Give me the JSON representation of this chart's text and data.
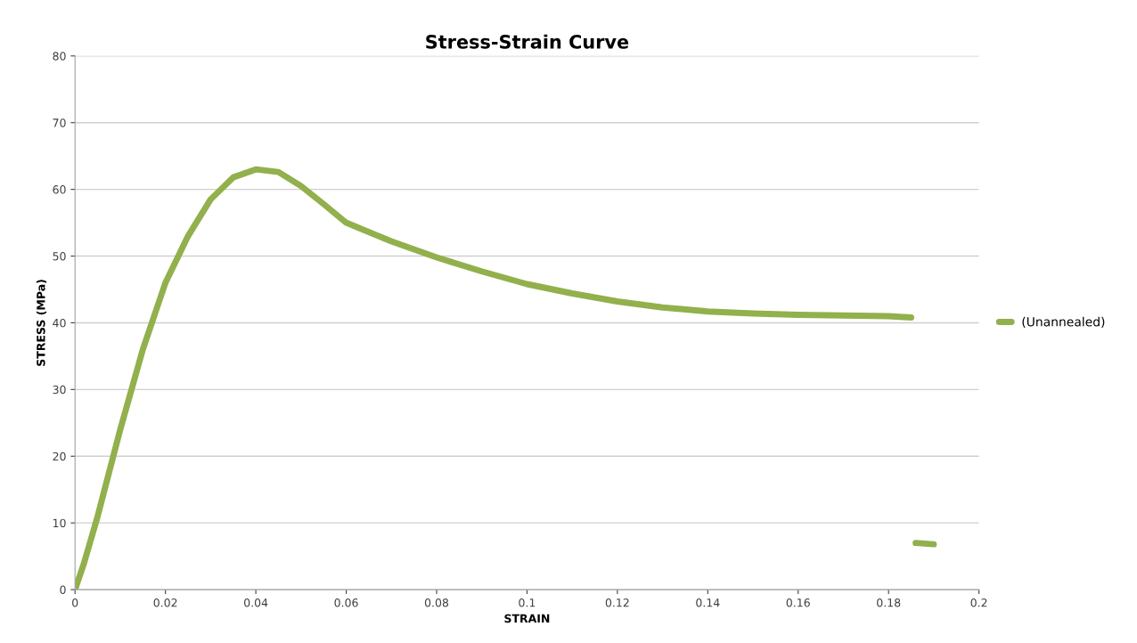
{
  "chart_data": {
    "type": "line",
    "title": "Stress-Strain Curve",
    "xlabel": "STRAIN",
    "ylabel": "STRESS (MPa)",
    "x": [
      0,
      0.002,
      0.005,
      0.01,
      0.015,
      0.02,
      0.025,
      0.03,
      0.035,
      0.04,
      0.045,
      0.05,
      0.055,
      0.06,
      0.07,
      0.08,
      0.09,
      0.1,
      0.11,
      0.12,
      0.13,
      0.14,
      0.15,
      0.16,
      0.17,
      0.18,
      0.185
    ],
    "series": [
      {
        "name": "(Unannealed)",
        "color": "#92b04c",
        "values": [
          0,
          4,
          11,
          24,
          36,
          46,
          53,
          58.5,
          61.8,
          63,
          62.6,
          60.5,
          57.8,
          55,
          52.2,
          49.8,
          47.7,
          45.8,
          44.4,
          43.2,
          42.3,
          41.7,
          41.4,
          41.2,
          41.1,
          41,
          40.8
        ]
      },
      {
        "color": "#92b04c",
        "x": [
          0.186,
          0.19
        ],
        "values": [
          7,
          6.8
        ]
      }
    ],
    "xlim": [
      0,
      0.2
    ],
    "xticks": [
      0,
      0.02,
      0.04,
      0.06,
      0.08,
      0.1,
      0.12,
      0.14,
      0.16,
      0.18,
      0.2
    ],
    "ylim": [
      0,
      80
    ],
    "yticks": [
      0,
      10,
      20,
      30,
      40,
      50,
      60,
      70,
      80
    ],
    "grid": "y",
    "legend": "right",
    "marker": "none",
    "line_style": "solid"
  }
}
